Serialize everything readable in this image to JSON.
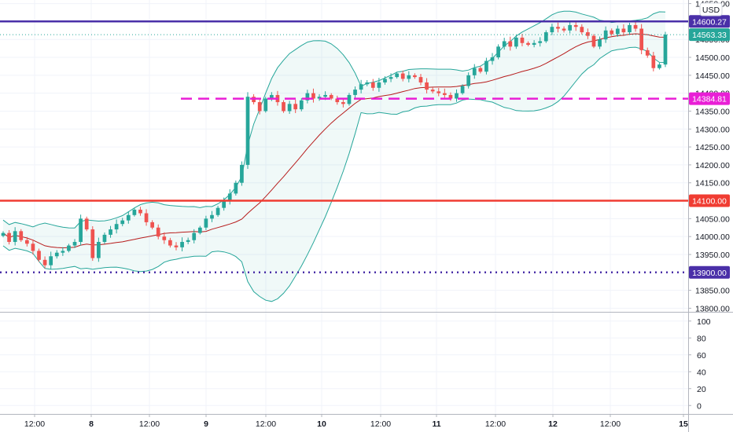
{
  "chart_data": {
    "type": "candlestick",
    "currency_label": "USD",
    "main_ylim": [
      13790,
      14660
    ],
    "y_ticks": [
      {
        "value": 14650,
        "label": "14650.00"
      },
      {
        "value": 14550,
        "label": "14550.00"
      },
      {
        "value": 14500,
        "label": "14500.00"
      },
      {
        "value": 14450,
        "label": "14450.00"
      },
      {
        "value": 14400,
        "label": "14400.00"
      },
      {
        "value": 14350,
        "label": "14350.00"
      },
      {
        "value": 14300,
        "label": "14300.00"
      },
      {
        "value": 14250,
        "label": "14250.00"
      },
      {
        "value": 14200,
        "label": "14200.00"
      },
      {
        "value": 14150,
        "label": "14150.00"
      },
      {
        "value": 14050,
        "label": "14050.00"
      },
      {
        "value": 14000,
        "label": "14000.00"
      },
      {
        "value": 13950,
        "label": "13950.00"
      },
      {
        "value": 13850,
        "label": "13850.00"
      },
      {
        "value": 13800,
        "label": "13800.00"
      }
    ],
    "x_ticks": [
      "12:00",
      "8",
      "12:00",
      "9",
      "12:00",
      "10",
      "12:00",
      "11",
      "12:00",
      "12",
      "12:00",
      "15"
    ],
    "bar_count": 112,
    "horizontal_levels": [
      {
        "value": 14600.27,
        "label": "14600.27",
        "color": "#4a2fa8",
        "style": "solid"
      },
      {
        "value": 14384.81,
        "label": "14384.81",
        "color": "#e91ed6",
        "style": "dashed"
      },
      {
        "value": 14100.0,
        "label": "14100.00",
        "color": "#f03c32",
        "style": "solid"
      },
      {
        "value": 13900.0,
        "label": "13900.00",
        "color": "#4a2fa8",
        "style": "dotted"
      }
    ],
    "last_price": {
      "value": 14563.33,
      "label": "14563.33",
      "color": "#26a69a"
    },
    "indicator_pane": {
      "ylim": [
        -10,
        110
      ],
      "y_ticks": [
        {
          "value": 100,
          "label": "100"
        },
        {
          "value": 80,
          "label": "80"
        },
        {
          "value": 60,
          "label": "60"
        },
        {
          "value": 40,
          "label": "40"
        },
        {
          "value": 20,
          "label": "20"
        },
        {
          "value": 0,
          "label": "0"
        }
      ]
    },
    "colors": {
      "up": "#26a69a",
      "down": "#ef5350",
      "bollinger_band": "#26a69a",
      "bollinger_fill": "rgba(38,166,154,0.07)",
      "bollinger_basis": "#b71c1c",
      "grid": "#f0f3fa",
      "axis_line": "#b2b5be"
    },
    "closes": [
      14010,
      13985,
      14015,
      13990,
      13980,
      13960,
      13935,
      13920,
      13945,
      13955,
      13960,
      13975,
      13985,
      14050,
      14020,
      13940,
      13985,
      14005,
      14020,
      14035,
      14045,
      14060,
      14075,
      14065,
      14040,
      14025,
      14000,
      13990,
      13975,
      13970,
      13985,
      13990,
      14010,
      14025,
      14050,
      14060,
      14080,
      14100,
      14120,
      14150,
      14200,
      14390,
      14375,
      14350,
      14385,
      14395,
      14375,
      14350,
      14370,
      14355,
      14380,
      14400,
      14385,
      14390,
      14395,
      14385,
      14375,
      14370,
      14395,
      14410,
      14425,
      14430,
      14415,
      14430,
      14440,
      14445,
      14455,
      14440,
      14450,
      14445,
      14430,
      14410,
      14405,
      14400,
      14395,
      14385,
      14400,
      14420,
      14450,
      14470,
      14460,
      14490,
      14500,
      14530,
      14545,
      14530,
      14555,
      14540,
      14535,
      14540,
      14545,
      14570,
      14585,
      14580,
      14575,
      14590,
      14585,
      14570,
      14560,
      14530,
      14550,
      14575,
      14565,
      14580,
      14570,
      14590,
      14580,
      14520,
      14505,
      14470,
      14480,
      14563.33
    ]
  }
}
